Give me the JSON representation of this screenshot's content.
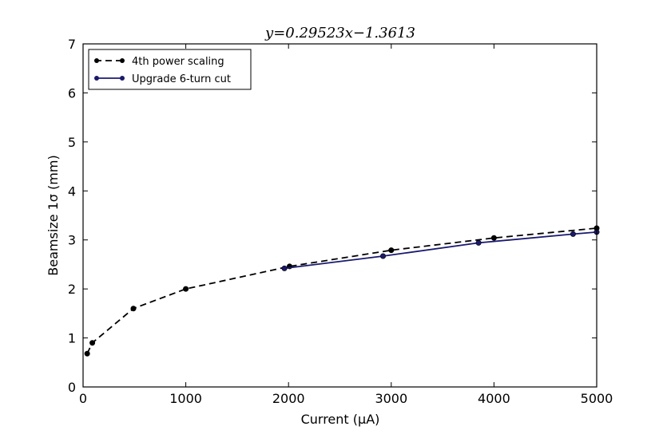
{
  "chart_data": {
    "type": "line",
    "title": "y=0.29523x−1.3613",
    "xlabel": "Current (μA)",
    "ylabel": "Beamsize 1σ (mm)",
    "xlim": [
      0,
      5000
    ],
    "ylim": [
      0,
      7
    ],
    "xticks": [
      0,
      1000,
      2000,
      3000,
      4000,
      5000
    ],
    "yticks": [
      0,
      1,
      2,
      3,
      4,
      5,
      6,
      7
    ],
    "grid": false,
    "legend_position": "top-left",
    "series": [
      {
        "name": "4th power scaling",
        "color": "#000000",
        "linestyle": "dashed",
        "marker": "circle",
        "x": [
          40,
          90,
          490,
          1000,
          2010,
          3000,
          4000,
          5000
        ],
        "y": [
          0.68,
          0.9,
          1.6,
          2.0,
          2.46,
          2.79,
          3.04,
          3.24
        ]
      },
      {
        "name": "Upgrade 6-turn cut",
        "color": "#191970",
        "linestyle": "solid",
        "marker": "circle",
        "x": [
          1960,
          2920,
          3850,
          4770,
          5000
        ],
        "y": [
          2.42,
          2.67,
          2.94,
          3.12,
          3.16
        ]
      }
    ]
  }
}
